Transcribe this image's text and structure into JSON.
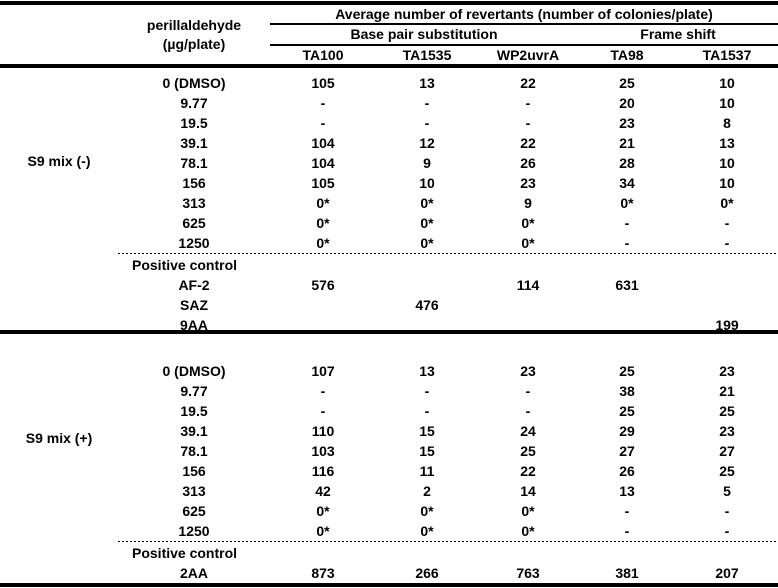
{
  "page": {
    "background": "#ffffff",
    "text_color": "#000000"
  },
  "table": {
    "dose_header": {
      "line1": "perillaldehyde",
      "line2": "(µg/plate)"
    },
    "main_header": "Average number of revertants (number of colonies/plate)",
    "group_headers": {
      "base_pair": "Base pair substitution",
      "frame_shift": "Frame shift"
    },
    "strains": [
      "TA100",
      "TA1535",
      "WP2uvrA",
      "TA98",
      "TA1537"
    ],
    "sections": [
      {
        "label": "S9 mix (-)",
        "rows": [
          {
            "dose": "0 (DMSO)",
            "values": [
              "105",
              "13",
              "22",
              "25",
              "10"
            ]
          },
          {
            "dose": "9.77",
            "values": [
              "-",
              "-",
              "-",
              "20",
              "10"
            ]
          },
          {
            "dose": "19.5",
            "values": [
              "-",
              "-",
              "-",
              "23",
              "8"
            ]
          },
          {
            "dose": "39.1",
            "values": [
              "104",
              "12",
              "22",
              "21",
              "13"
            ]
          },
          {
            "dose": "78.1",
            "values": [
              "104",
              "9",
              "26",
              "28",
              "10"
            ]
          },
          {
            "dose": "156",
            "values": [
              "105",
              "10",
              "23",
              "34",
              "10"
            ]
          },
          {
            "dose": "313",
            "values": [
              "0*",
              "0*",
              "9",
              "0*",
              "0*"
            ]
          },
          {
            "dose": "625",
            "values": [
              "0*",
              "0*",
              "0*",
              "-",
              "-"
            ]
          },
          {
            "dose": "1250",
            "values": [
              "0*",
              "0*",
              "0*",
              "-",
              "-"
            ]
          }
        ],
        "positive_control_label": "Positive control",
        "positive_rows": [
          {
            "dose": "AF-2",
            "values": [
              "576",
              "",
              "114",
              "631",
              ""
            ]
          },
          {
            "dose": "SAZ",
            "values": [
              "",
              "476",
              "",
              "",
              ""
            ]
          },
          {
            "dose": "9AA",
            "values": [
              "",
              "",
              "",
              "",
              "199"
            ]
          }
        ]
      },
      {
        "label": "S9 mix (+)",
        "rows": [
          {
            "dose": "0 (DMSO)",
            "values": [
              "107",
              "13",
              "23",
              "25",
              "23"
            ]
          },
          {
            "dose": "9.77",
            "values": [
              "-",
              "-",
              "-",
              "38",
              "21"
            ]
          },
          {
            "dose": "19.5",
            "values": [
              "-",
              "-",
              "-",
              "25",
              "25"
            ]
          },
          {
            "dose": "39.1",
            "values": [
              "110",
              "15",
              "24",
              "29",
              "23"
            ]
          },
          {
            "dose": "78.1",
            "values": [
              "103",
              "15",
              "25",
              "27",
              "27"
            ]
          },
          {
            "dose": "156",
            "values": [
              "116",
              "11",
              "22",
              "26",
              "25"
            ]
          },
          {
            "dose": "313",
            "values": [
              "42",
              "2",
              "14",
              "13",
              "5"
            ]
          },
          {
            "dose": "625",
            "values": [
              "0*",
              "0*",
              "0*",
              "-",
              "-"
            ]
          },
          {
            "dose": "1250",
            "values": [
              "0*",
              "0*",
              "0*",
              "-",
              "-"
            ]
          }
        ],
        "positive_control_label": "Positive control",
        "positive_rows": [
          {
            "dose": "2AA",
            "values": [
              "873",
              "266",
              "763",
              "381",
              "207"
            ]
          }
        ]
      }
    ]
  }
}
